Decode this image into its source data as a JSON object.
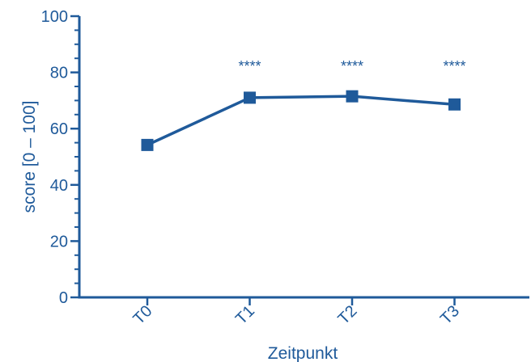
{
  "chart_data": {
    "type": "line",
    "xlabel": "Zeitpunkt",
    "ylabel": "score [0 – 100]",
    "ylim": [
      0,
      100
    ],
    "yticks": [
      0,
      20,
      40,
      60,
      80,
      100
    ],
    "categories": [
      "T0",
      "T1",
      "T2",
      "T3"
    ],
    "values": [
      54.2,
      71.0,
      71.5,
      68.6
    ],
    "annotations": [
      "",
      "****",
      "****",
      "****"
    ],
    "color": "#1f5a9a",
    "marker": "square",
    "grid": false
  }
}
